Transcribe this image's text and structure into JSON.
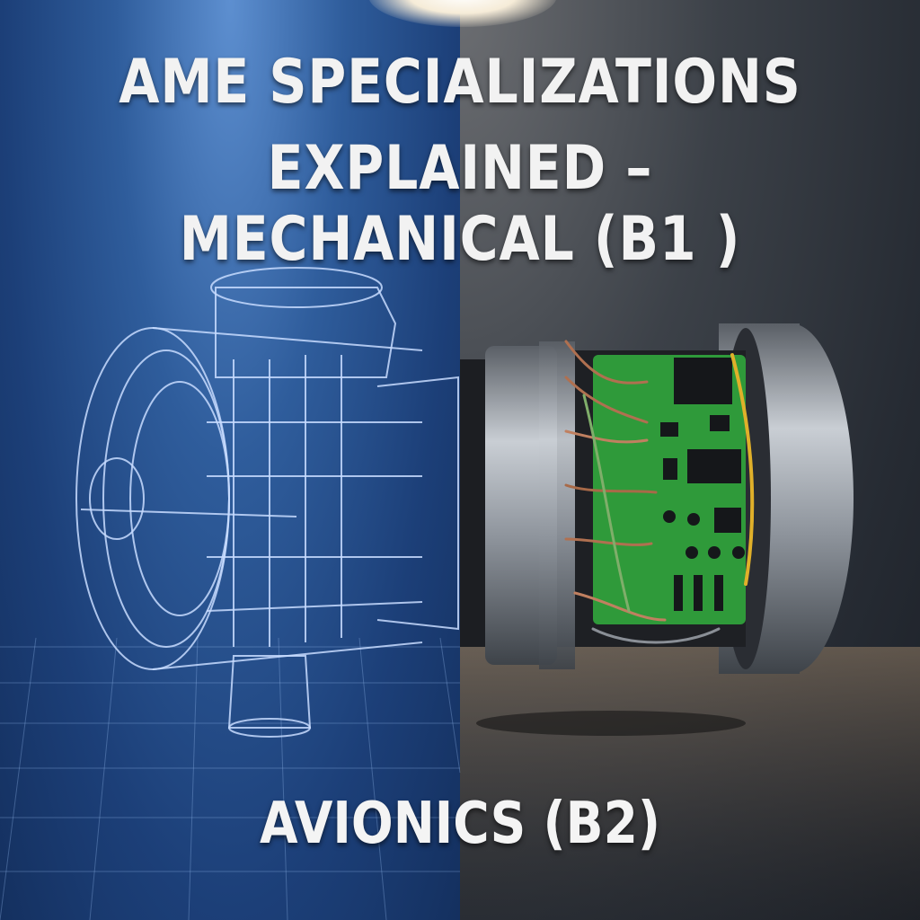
{
  "title": {
    "line1": "AME SPECIALIZATIONS",
    "line2": "EXPLAINED – MECHANICAL (B1 )"
  },
  "subtitle": "AVIONICS (B2)",
  "colors": {
    "blueprint": "#2f5d9c",
    "blueprint_line": "#bcd6ff",
    "dark_panel": "#262b33",
    "pcb_green": "#2f9a3a",
    "metal": "#9aa0a8"
  }
}
